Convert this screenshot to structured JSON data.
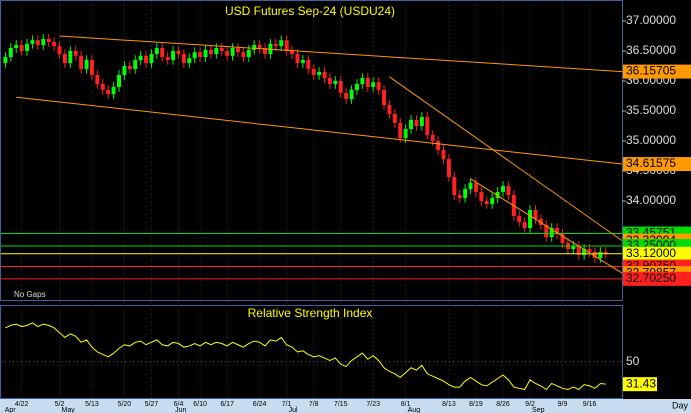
{
  "chart_data": {
    "type": "candlestick",
    "title": "USD Futures Sep-24 (USDU24)",
    "note": "No Gaps",
    "x_unit": "Day",
    "xlim": [
      -1,
      114
    ],
    "ylim": [
      32.35,
      37.35
    ],
    "yticks": [
      {
        "value": 34.0,
        "label": "34.00000"
      },
      {
        "value": 34.5,
        "label": "34.50000"
      },
      {
        "value": 35.0,
        "label": "35.00000"
      },
      {
        "value": 35.5,
        "label": "35.50000"
      },
      {
        "value": 36.0,
        "label": "36.00000"
      },
      {
        "value": 36.5,
        "label": "36.50000"
      },
      {
        "value": 37.0,
        "label": "37.00000"
      }
    ],
    "xticks": [
      {
        "value": 3,
        "label": "4/22"
      },
      {
        "value": 10,
        "label": "5/2"
      },
      {
        "value": 16,
        "label": "5/13"
      },
      {
        "value": 22,
        "label": "5/20"
      },
      {
        "value": 27,
        "label": "5/27"
      },
      {
        "value": 32,
        "label": "6/4"
      },
      {
        "value": 36,
        "label": "6/10"
      },
      {
        "value": 41,
        "label": "6/17"
      },
      {
        "value": 47,
        "label": "6/24"
      },
      {
        "value": 52,
        "label": "7/1"
      },
      {
        "value": 57,
        "label": "7/8"
      },
      {
        "value": 62,
        "label": "7/15"
      },
      {
        "value": 68,
        "label": "7/23"
      },
      {
        "value": 74,
        "label": "8/1"
      },
      {
        "value": 82,
        "label": "8/13"
      },
      {
        "value": 87,
        "label": "8/19"
      },
      {
        "value": 92,
        "label": "8/26"
      },
      {
        "value": 97,
        "label": "9/2"
      },
      {
        "value": 103,
        "label": "9/9"
      },
      {
        "value": 108,
        "label": "9/16"
      }
    ],
    "months": [
      {
        "value": -0.5,
        "label": "Apr"
      },
      {
        "value": 10,
        "label": "May"
      },
      {
        "value": 31,
        "label": "Jun"
      },
      {
        "value": 52,
        "label": "Jul"
      },
      {
        "value": 74,
        "label": "Aug"
      },
      {
        "value": 97,
        "label": "Sep"
      }
    ],
    "up_color": "#00ff00",
    "down_color": "#ff2020",
    "candles": [
      [
        36.3,
        36.48,
        36.22,
        36.4
      ],
      [
        36.4,
        36.63,
        36.32,
        36.55
      ],
      [
        36.55,
        36.68,
        36.47,
        36.6
      ],
      [
        36.6,
        36.68,
        36.42,
        36.5
      ],
      [
        36.5,
        36.7,
        36.42,
        36.62
      ],
      [
        36.62,
        36.76,
        36.54,
        36.68
      ],
      [
        36.68,
        36.76,
        36.52,
        36.6
      ],
      [
        36.6,
        36.78,
        36.52,
        36.7
      ],
      [
        36.7,
        36.78,
        36.57,
        36.65
      ],
      [
        36.65,
        36.73,
        36.5,
        36.58
      ],
      [
        36.58,
        36.66,
        36.37,
        36.45
      ],
      [
        36.45,
        36.53,
        36.22,
        36.3
      ],
      [
        36.3,
        36.58,
        36.22,
        36.5
      ],
      [
        36.5,
        36.58,
        36.34,
        36.42
      ],
      [
        36.42,
        36.5,
        36.12,
        36.2
      ],
      [
        36.2,
        36.43,
        36.12,
        36.35
      ],
      [
        36.35,
        36.43,
        36.02,
        36.1
      ],
      [
        36.1,
        36.18,
        35.87,
        35.95
      ],
      [
        35.95,
        36.03,
        35.77,
        35.85
      ],
      [
        35.85,
        35.93,
        35.7,
        35.78
      ],
      [
        35.78,
        35.98,
        35.7,
        35.9
      ],
      [
        35.9,
        36.18,
        35.82,
        36.1
      ],
      [
        36.1,
        36.33,
        36.02,
        36.25
      ],
      [
        36.25,
        36.33,
        36.12,
        36.2
      ],
      [
        36.2,
        36.43,
        36.12,
        36.35
      ],
      [
        36.35,
        36.5,
        36.27,
        36.42
      ],
      [
        36.42,
        36.5,
        36.22,
        36.3
      ],
      [
        36.3,
        36.53,
        36.22,
        36.45
      ],
      [
        36.45,
        36.63,
        36.37,
        36.55
      ],
      [
        36.55,
        36.63,
        36.32,
        36.4
      ],
      [
        36.4,
        36.48,
        36.27,
        36.35
      ],
      [
        36.35,
        36.58,
        36.27,
        36.5
      ],
      [
        36.5,
        36.58,
        36.37,
        36.45
      ],
      [
        36.45,
        36.53,
        36.22,
        36.3
      ],
      [
        36.3,
        36.46,
        36.22,
        36.38
      ],
      [
        36.38,
        36.56,
        36.3,
        36.48
      ],
      [
        36.48,
        36.56,
        36.32,
        36.4
      ],
      [
        36.4,
        36.6,
        36.32,
        36.52
      ],
      [
        36.52,
        36.6,
        36.37,
        36.45
      ],
      [
        36.45,
        36.63,
        36.37,
        36.55
      ],
      [
        36.55,
        36.63,
        36.42,
        36.5
      ],
      [
        36.5,
        36.58,
        36.34,
        36.42
      ],
      [
        36.42,
        36.63,
        36.34,
        36.55
      ],
      [
        36.55,
        36.63,
        36.4,
        36.48
      ],
      [
        36.48,
        36.56,
        36.32,
        36.4
      ],
      [
        36.4,
        36.6,
        36.32,
        36.52
      ],
      [
        36.52,
        36.68,
        36.44,
        36.6
      ],
      [
        36.6,
        36.68,
        36.47,
        36.55
      ],
      [
        36.55,
        36.63,
        36.37,
        36.45
      ],
      [
        36.45,
        36.7,
        36.37,
        36.62
      ],
      [
        36.62,
        36.7,
        36.5,
        36.58
      ],
      [
        36.58,
        36.76,
        36.5,
        36.68
      ],
      [
        36.68,
        36.76,
        36.42,
        36.5
      ],
      [
        36.5,
        36.58,
        36.37,
        36.45
      ],
      [
        36.45,
        36.53,
        36.22,
        36.3
      ],
      [
        36.3,
        36.43,
        36.22,
        36.35
      ],
      [
        36.35,
        36.43,
        36.12,
        36.2
      ],
      [
        36.2,
        36.28,
        36.02,
        36.1
      ],
      [
        36.1,
        36.23,
        36.02,
        36.15
      ],
      [
        36.15,
        36.23,
        35.97,
        36.05
      ],
      [
        36.05,
        36.13,
        35.87,
        35.95
      ],
      [
        35.95,
        36.08,
        35.87,
        36.0
      ],
      [
        36.0,
        36.08,
        35.72,
        35.8
      ],
      [
        35.8,
        35.88,
        35.62,
        35.7
      ],
      [
        35.7,
        35.93,
        35.62,
        35.85
      ],
      [
        35.85,
        36.03,
        35.77,
        35.95
      ],
      [
        35.95,
        36.13,
        35.87,
        36.05
      ],
      [
        36.05,
        36.13,
        35.82,
        35.9
      ],
      [
        35.9,
        36.06,
        35.82,
        35.98
      ],
      [
        35.98,
        36.06,
        35.77,
        35.85
      ],
      [
        35.85,
        35.93,
        35.52,
        35.6
      ],
      [
        35.6,
        35.68,
        35.37,
        35.45
      ],
      [
        35.45,
        35.53,
        35.22,
        35.3
      ],
      [
        35.3,
        35.38,
        34.97,
        35.05
      ],
      [
        35.05,
        35.28,
        34.97,
        35.2
      ],
      [
        35.2,
        35.43,
        35.12,
        35.35
      ],
      [
        35.35,
        35.43,
        35.17,
        35.25
      ],
      [
        35.25,
        35.48,
        35.17,
        35.4
      ],
      [
        35.4,
        35.48,
        35.02,
        35.1
      ],
      [
        35.1,
        35.18,
        34.92,
        35.0
      ],
      [
        35.0,
        35.08,
        34.77,
        34.85
      ],
      [
        34.85,
        34.93,
        34.62,
        34.7
      ],
      [
        34.7,
        34.78,
        34.32,
        34.4
      ],
      [
        34.4,
        34.48,
        34.02,
        34.1
      ],
      [
        34.1,
        34.18,
        33.97,
        34.05
      ],
      [
        34.05,
        34.28,
        33.97,
        34.2
      ],
      [
        34.2,
        34.38,
        34.12,
        34.3
      ],
      [
        34.3,
        34.38,
        34.07,
        34.15
      ],
      [
        34.15,
        34.23,
        33.92,
        34.0
      ],
      [
        34.0,
        34.08,
        33.87,
        33.95
      ],
      [
        33.95,
        34.13,
        33.87,
        34.05
      ],
      [
        34.05,
        34.23,
        33.97,
        34.15
      ],
      [
        34.15,
        34.33,
        34.07,
        34.25
      ],
      [
        34.25,
        34.33,
        34.02,
        34.1
      ],
      [
        34.1,
        34.18,
        33.67,
        33.75
      ],
      [
        33.75,
        33.83,
        33.57,
        33.65
      ],
      [
        33.65,
        33.73,
        33.47,
        33.55
      ],
      [
        33.55,
        33.93,
        33.47,
        33.85
      ],
      [
        33.85,
        33.93,
        33.62,
        33.7
      ],
      [
        33.7,
        33.78,
        33.52,
        33.6
      ],
      [
        33.6,
        33.68,
        33.32,
        33.4
      ],
      [
        33.4,
        33.63,
        33.32,
        33.55
      ],
      [
        33.55,
        33.63,
        33.37,
        33.45
      ],
      [
        33.45,
        33.53,
        33.22,
        33.3
      ],
      [
        33.3,
        33.38,
        33.12,
        33.2
      ],
      [
        33.2,
        33.33,
        33.12,
        33.25
      ],
      [
        33.25,
        33.33,
        33.02,
        33.1
      ],
      [
        33.1,
        33.28,
        33.02,
        33.2
      ],
      [
        33.2,
        33.28,
        33.07,
        33.15
      ],
      [
        33.15,
        33.23,
        32.97,
        33.05
      ],
      [
        33.05,
        33.23,
        32.97,
        33.15
      ],
      [
        33.15,
        33.23,
        33.04,
        33.12
      ]
    ],
    "levels": [
      {
        "value": 36.15705,
        "label": "36.15705",
        "color": "#ff9900",
        "start": [
          10,
          36.75
        ]
      },
      {
        "value": 34.61575,
        "label": "34.61575",
        "color": "#ff9900",
        "start": [
          2,
          35.73
        ]
      },
      {
        "value": 33.45751,
        "label": "33.45751",
        "color": "#00dd00"
      },
      {
        "value": 33.33994,
        "label": "33.33994",
        "color": "#ff9900",
        "start": [
          71,
          36.07
        ]
      },
      {
        "value": 33.25,
        "label": "33.25000",
        "color": "#00dd00"
      },
      {
        "value": 33.12,
        "label": "33.12000",
        "color": "#ffff00"
      },
      {
        "value": 32.9075,
        "label": "32.90750",
        "color": "#ff2020"
      },
      {
        "value": 32.79857,
        "label": "32.79857",
        "color": "#ff9900",
        "start": [
          86,
          34.37
        ]
      },
      {
        "value": 32.7025,
        "label": "32.70250",
        "color": "#ff2020"
      }
    ],
    "rsi": {
      "title": "Relative Strength Index",
      "color": "#ffff00",
      "ylim": [
        20,
        96
      ],
      "yticks": [
        50
      ],
      "values": [
        78,
        80,
        81,
        79,
        80,
        82,
        79,
        81,
        80,
        78,
        74,
        70,
        73,
        71,
        66,
        68,
        62,
        58,
        56,
        54,
        57,
        61,
        64,
        63,
        66,
        67,
        64,
        66,
        68,
        64,
        63,
        66,
        65,
        62,
        63,
        65,
        63,
        66,
        64,
        66,
        65,
        63,
        66,
        64,
        62,
        65,
        67,
        66,
        63,
        68,
        67,
        70,
        64,
        62,
        58,
        59,
        56,
        54,
        55,
        53,
        51,
        53,
        48,
        46,
        51,
        54,
        57,
        52,
        55,
        51,
        45,
        42,
        40,
        37,
        41,
        45,
        43,
        47,
        40,
        38,
        36,
        34,
        31,
        29,
        29,
        34,
        37,
        34,
        31,
        30,
        33,
        36,
        39,
        35,
        29,
        28,
        27,
        35,
        32,
        30,
        27,
        32,
        30,
        28,
        27,
        29,
        27,
        31,
        30,
        28,
        32,
        31.43
      ]
    }
  }
}
